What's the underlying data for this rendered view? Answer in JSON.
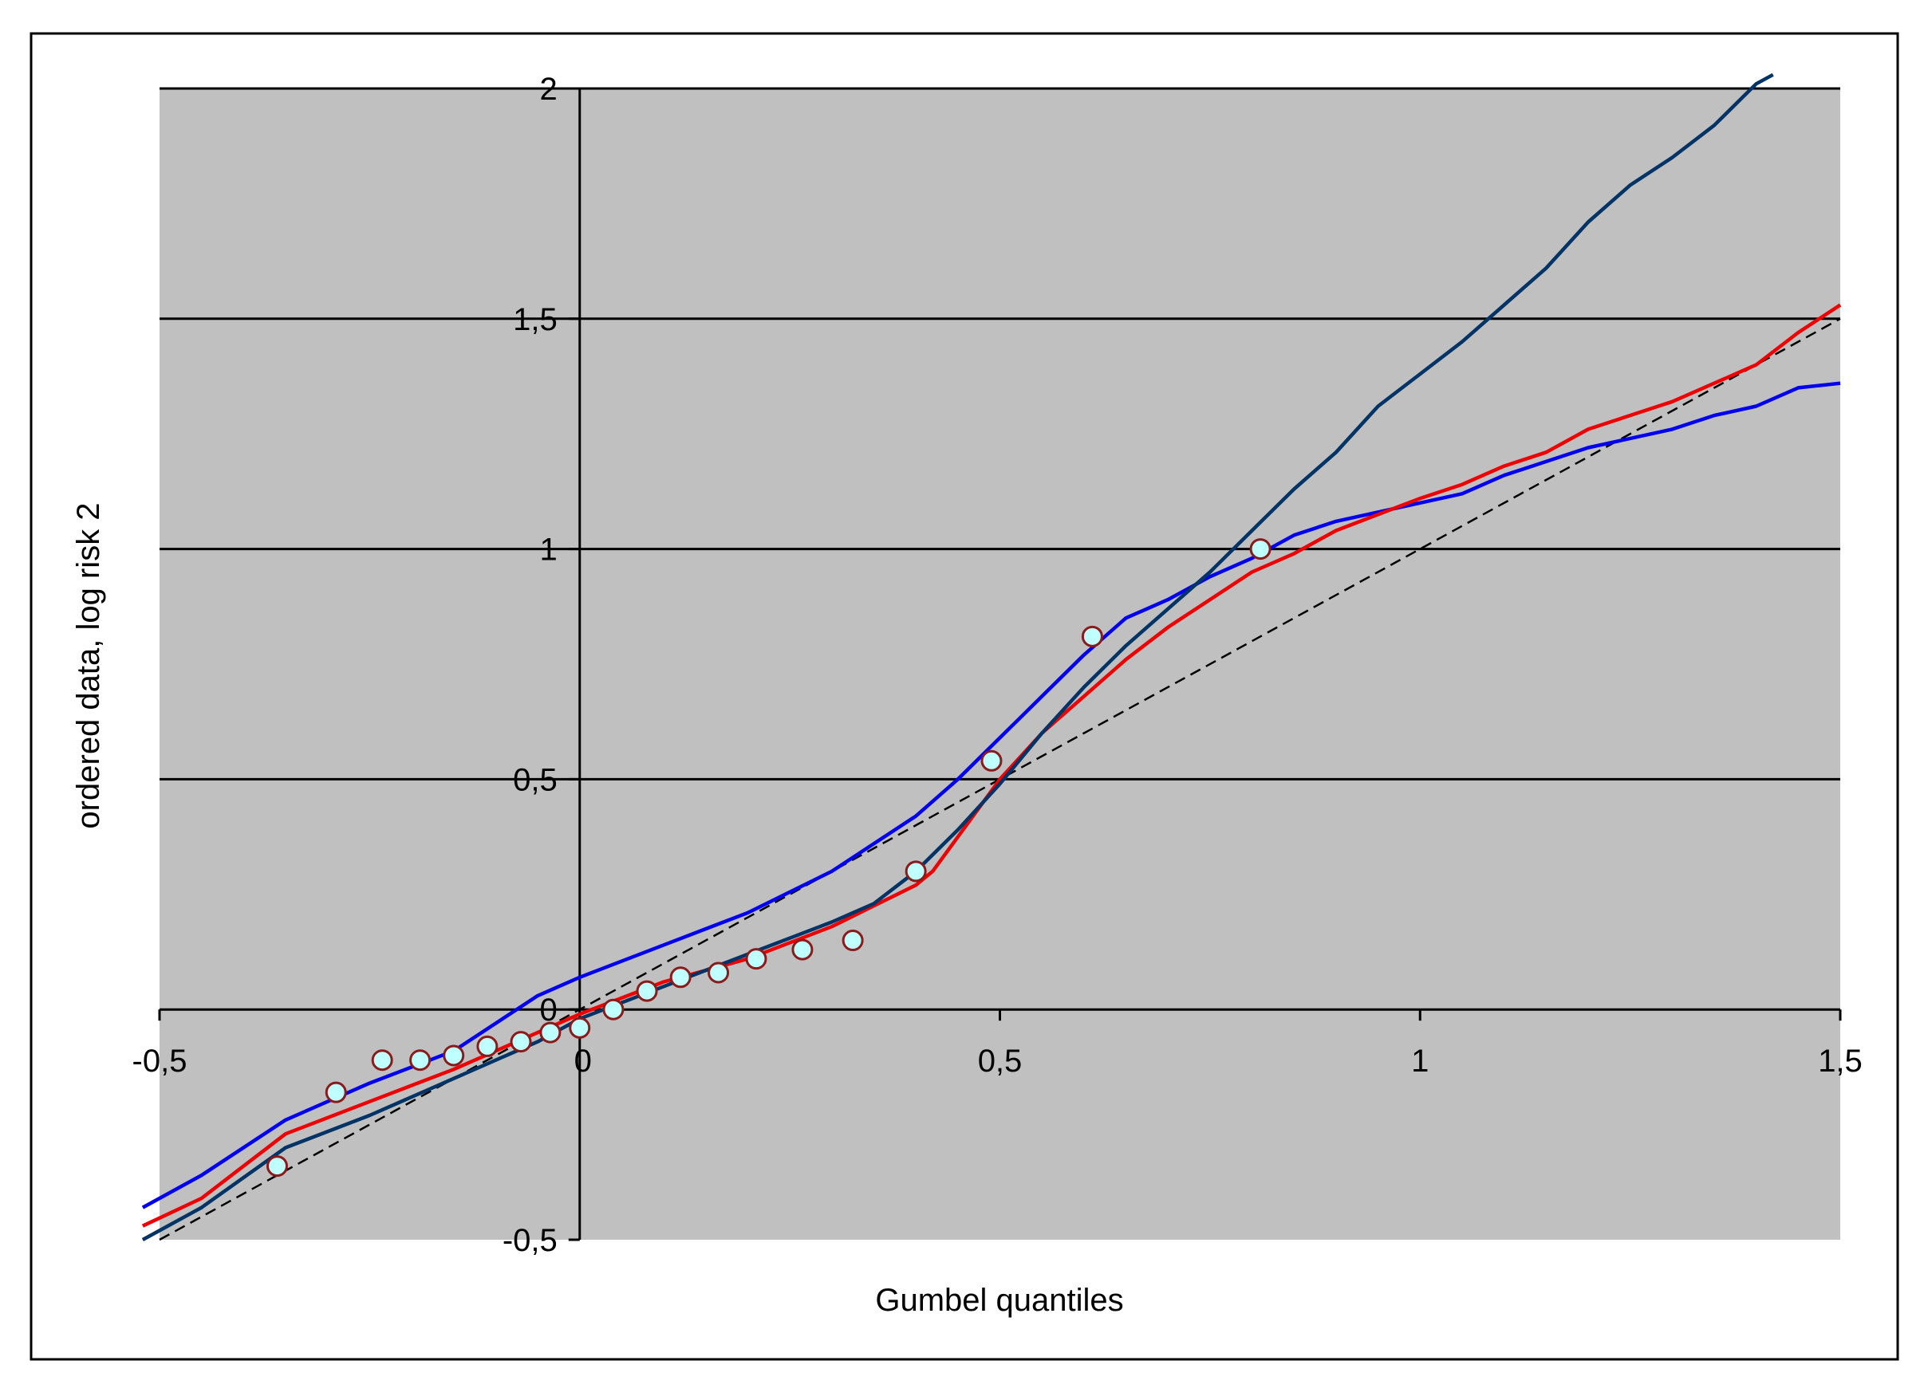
{
  "chart_data": {
    "type": "line",
    "xlabel": "Gumbel quantiles",
    "ylabel": "ordered data, log risk 2",
    "xlim": [
      -0.5,
      1.5
    ],
    "ylim": [
      -0.5,
      2
    ],
    "x_ticks": [
      {
        "value": -0.5,
        "label": "-0,5"
      },
      {
        "value": 0,
        "label": "0"
      },
      {
        "value": 0.5,
        "label": "0,5"
      },
      {
        "value": 1,
        "label": "1"
      },
      {
        "value": 1.5,
        "label": "1,5"
      }
    ],
    "y_ticks": [
      {
        "value": -0.5,
        "label": "-0,5"
      },
      {
        "value": 0,
        "label": "0"
      },
      {
        "value": 0.5,
        "label": "0,5"
      },
      {
        "value": 1,
        "label": "1"
      },
      {
        "value": 1.5,
        "label": "1,5"
      },
      {
        "value": 2,
        "label": "2"
      }
    ],
    "grid": "horizontal",
    "plot_background": "#c0c0c0",
    "series": [
      {
        "kind": "line",
        "dashed": true,
        "color": "#000000",
        "x": [
          -0.5,
          1.5
        ],
        "y": [
          -0.5,
          1.5
        ]
      },
      {
        "kind": "line",
        "dashed": false,
        "color": "#0000ee",
        "x": [
          -0.52,
          -0.45,
          -0.35,
          -0.25,
          -0.15,
          -0.05,
          0.0,
          0.1,
          0.2,
          0.3,
          0.4,
          0.45,
          0.5,
          0.55,
          0.6,
          0.65,
          0.7,
          0.75,
          0.8,
          0.85,
          0.9,
          1.0,
          1.05,
          1.1,
          1.15,
          1.2,
          1.3,
          1.35,
          1.4,
          1.45,
          1.5
        ],
        "y": [
          -0.43,
          -0.36,
          -0.24,
          -0.16,
          -0.09,
          0.03,
          0.07,
          0.14,
          0.21,
          0.3,
          0.42,
          0.5,
          0.59,
          0.68,
          0.77,
          0.85,
          0.89,
          0.94,
          0.98,
          1.03,
          1.06,
          1.1,
          1.12,
          1.16,
          1.19,
          1.22,
          1.26,
          1.29,
          1.31,
          1.35,
          1.36
        ]
      },
      {
        "kind": "line",
        "dashed": false,
        "color": "#ee0000",
        "x": [
          -0.52,
          -0.45,
          -0.35,
          -0.25,
          -0.15,
          -0.05,
          0.0,
          0.1,
          0.2,
          0.3,
          0.4,
          0.42,
          0.46,
          0.5,
          0.55,
          0.6,
          0.65,
          0.7,
          0.75,
          0.8,
          0.85,
          0.9,
          1.0,
          1.05,
          1.1,
          1.15,
          1.2,
          1.3,
          1.35,
          1.4,
          1.45,
          1.5
        ],
        "y": [
          -0.47,
          -0.41,
          -0.27,
          -0.2,
          -0.13,
          -0.05,
          -0.01,
          0.06,
          0.11,
          0.18,
          0.27,
          0.3,
          0.4,
          0.5,
          0.6,
          0.68,
          0.76,
          0.83,
          0.89,
          0.95,
          0.99,
          1.04,
          1.11,
          1.14,
          1.18,
          1.21,
          1.26,
          1.32,
          1.36,
          1.4,
          1.47,
          1.53
        ]
      },
      {
        "kind": "line",
        "dashed": false,
        "color": "#003366",
        "x": [
          -0.52,
          -0.45,
          -0.35,
          -0.25,
          -0.15,
          -0.05,
          0.0,
          0.1,
          0.2,
          0.3,
          0.35,
          0.4,
          0.45,
          0.5,
          0.55,
          0.6,
          0.65,
          0.7,
          0.75,
          0.8,
          0.85,
          0.9,
          0.95,
          1.0,
          1.05,
          1.1,
          1.15,
          1.2,
          1.25,
          1.3,
          1.35,
          1.4,
          1.42
        ],
        "y": [
          -0.5,
          -0.43,
          -0.3,
          -0.23,
          -0.15,
          -0.07,
          -0.02,
          0.05,
          0.12,
          0.19,
          0.23,
          0.3,
          0.39,
          0.49,
          0.6,
          0.7,
          0.79,
          0.87,
          0.95,
          1.04,
          1.13,
          1.21,
          1.31,
          1.38,
          1.45,
          1.53,
          1.61,
          1.71,
          1.79,
          1.85,
          1.92,
          2.01,
          2.03
        ]
      },
      {
        "kind": "points",
        "color": "#c0ffff",
        "x": [
          -0.36,
          -0.29,
          -0.235,
          -0.19,
          -0.15,
          -0.11,
          -0.07,
          -0.035,
          0.0,
          0.04,
          0.08,
          0.12,
          0.165,
          0.21,
          0.265,
          0.325,
          0.4,
          0.49,
          0.61,
          0.81
        ],
        "y": [
          -0.34,
          -0.18,
          -0.11,
          -0.11,
          -0.1,
          -0.08,
          -0.07,
          -0.05,
          -0.04,
          0.0,
          0.04,
          0.07,
          0.08,
          0.11,
          0.13,
          0.15,
          0.3,
          0.54,
          0.81,
          1.0
        ]
      }
    ]
  }
}
